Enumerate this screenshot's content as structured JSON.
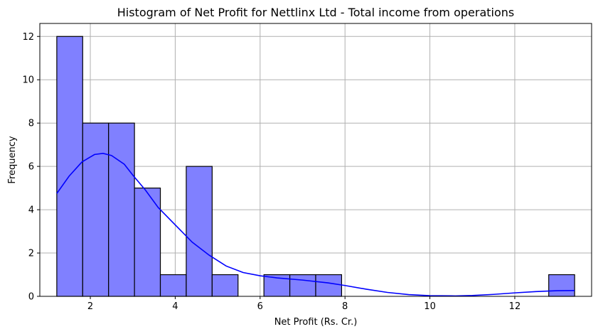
{
  "chart_data": {
    "type": "bar",
    "title": "Histogram of Net Profit for Nettlinx Ltd - Total income from operations",
    "xlabel": "Net Profit (Rs. Cr.)",
    "ylabel": "Frequency",
    "xlim": [
      0.81,
      13.81
    ],
    "ylim": [
      0,
      12.6
    ],
    "xticks": [
      2,
      4,
      6,
      8,
      10,
      12
    ],
    "yticks": [
      0,
      2,
      4,
      6,
      8,
      10,
      12
    ],
    "grid": true,
    "bins": [
      {
        "x0": 1.21,
        "x1": 1.82,
        "count": 12
      },
      {
        "x0": 1.82,
        "x1": 2.43,
        "count": 8
      },
      {
        "x0": 2.43,
        "x1": 3.04,
        "count": 8
      },
      {
        "x0": 3.04,
        "x1": 3.65,
        "count": 5
      },
      {
        "x0": 3.65,
        "x1": 4.26,
        "count": 1
      },
      {
        "x0": 4.26,
        "x1": 4.87,
        "count": 6
      },
      {
        "x0": 4.87,
        "x1": 5.48,
        "count": 1
      },
      {
        "x0": 6.09,
        "x1": 6.7,
        "count": 1
      },
      {
        "x0": 6.7,
        "x1": 7.31,
        "count": 1
      },
      {
        "x0": 7.31,
        "x1": 7.92,
        "count": 1
      },
      {
        "x0": 12.8,
        "x1": 13.41,
        "count": 1
      }
    ],
    "kde": {
      "x": [
        1.21,
        1.5,
        1.8,
        2.1,
        2.3,
        2.5,
        2.8,
        3.0,
        3.3,
        3.6,
        4.0,
        4.4,
        4.8,
        5.2,
        5.6,
        6.0,
        6.4,
        7.0,
        7.6,
        8.0,
        8.5,
        9.0,
        9.5,
        10.0,
        10.6,
        11.0,
        11.5,
        12.0,
        12.5,
        13.0,
        13.41
      ],
      "y": [
        4.75,
        5.55,
        6.2,
        6.55,
        6.6,
        6.5,
        6.1,
        5.6,
        4.9,
        4.1,
        3.3,
        2.5,
        1.9,
        1.4,
        1.1,
        0.95,
        0.85,
        0.75,
        0.62,
        0.5,
        0.33,
        0.18,
        0.08,
        0.03,
        0.02,
        0.04,
        0.09,
        0.16,
        0.22,
        0.26,
        0.27
      ]
    },
    "colors": {
      "bar_fill": "#8080ff",
      "bar_edge": "#000000",
      "kde_line": "#0000ff",
      "grid": "#b0b0b0"
    }
  }
}
